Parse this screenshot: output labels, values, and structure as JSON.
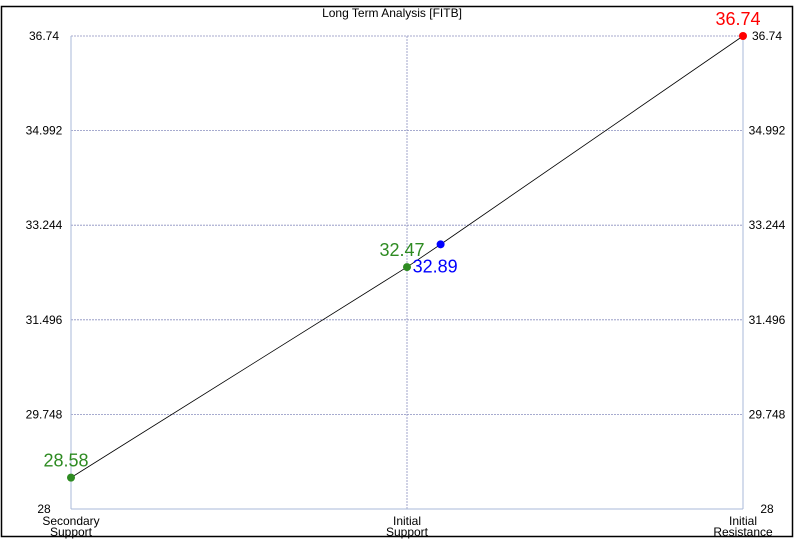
{
  "chart_data": {
    "type": "line",
    "title": "Long Term Analysis [FITB]",
    "categories": [
      {
        "lines": [
          "Secondary",
          "Support"
        ]
      },
      {
        "lines": [
          "Initial",
          "Support"
        ]
      },
      {
        "lines": [
          "Initial",
          "Resistance"
        ]
      }
    ],
    "x_range": [
      0,
      2
    ],
    "ylim": [
      28,
      36.74
    ],
    "y_ticks": [
      "28",
      "29.748",
      "31.496",
      "33.244",
      "34.992",
      "36.74"
    ],
    "grid": true,
    "series": [
      {
        "points": [
          {
            "x": 0,
            "y": 28.58,
            "label": "28.58",
            "color": "#2e8b22"
          },
          {
            "x": 1,
            "y": 32.47,
            "label": "32.47",
            "color": "#2e8b22"
          },
          {
            "x": 1.1,
            "y": 32.89,
            "label": "32.89",
            "color": "#0000ff"
          },
          {
            "x": 2,
            "y": 36.74,
            "label": "36.74",
            "color": "#ff0000"
          }
        ]
      }
    ],
    "colors": {
      "grid": "#8a8fbf",
      "axis": "#a9b8d8",
      "line": "#000000",
      "frame": "#000000"
    }
  }
}
